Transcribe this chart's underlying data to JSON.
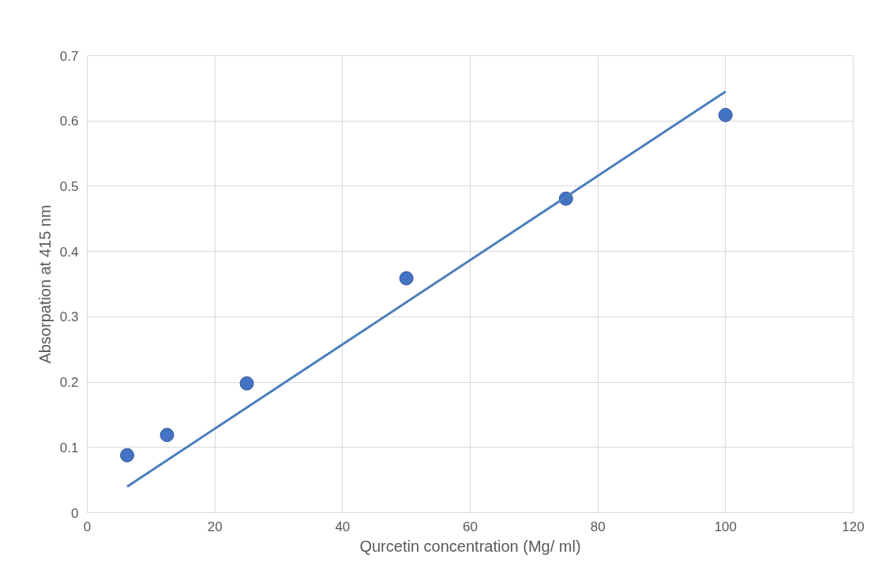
{
  "chart_data": {
    "type": "scatter",
    "xlabel": "Qurcetin concentration (Mg/ ml)",
    "ylabel": "Absorpation at 415 nm",
    "xlim": [
      0,
      120
    ],
    "xticks": [
      0,
      20,
      40,
      60,
      80,
      100,
      120
    ],
    "ylim": [
      0,
      0.7
    ],
    "yticks": [
      0,
      0.1,
      0.2,
      0.3,
      0.4,
      0.5,
      0.6,
      0.7
    ],
    "grid": true,
    "series": [
      {
        "marker": "circle",
        "color": "#4472c4",
        "x": [
          6.25,
          12.5,
          25,
          50,
          75,
          100
        ],
        "values": [
          0.088,
          0.119,
          0.198,
          0.359,
          0.481,
          0.609
        ]
      },
      {
        "type": "line",
        "color": "#4a7ebb",
        "x": [
          6.25,
          100
        ],
        "values": [
          0.04,
          0.645
        ]
      }
    ]
  }
}
